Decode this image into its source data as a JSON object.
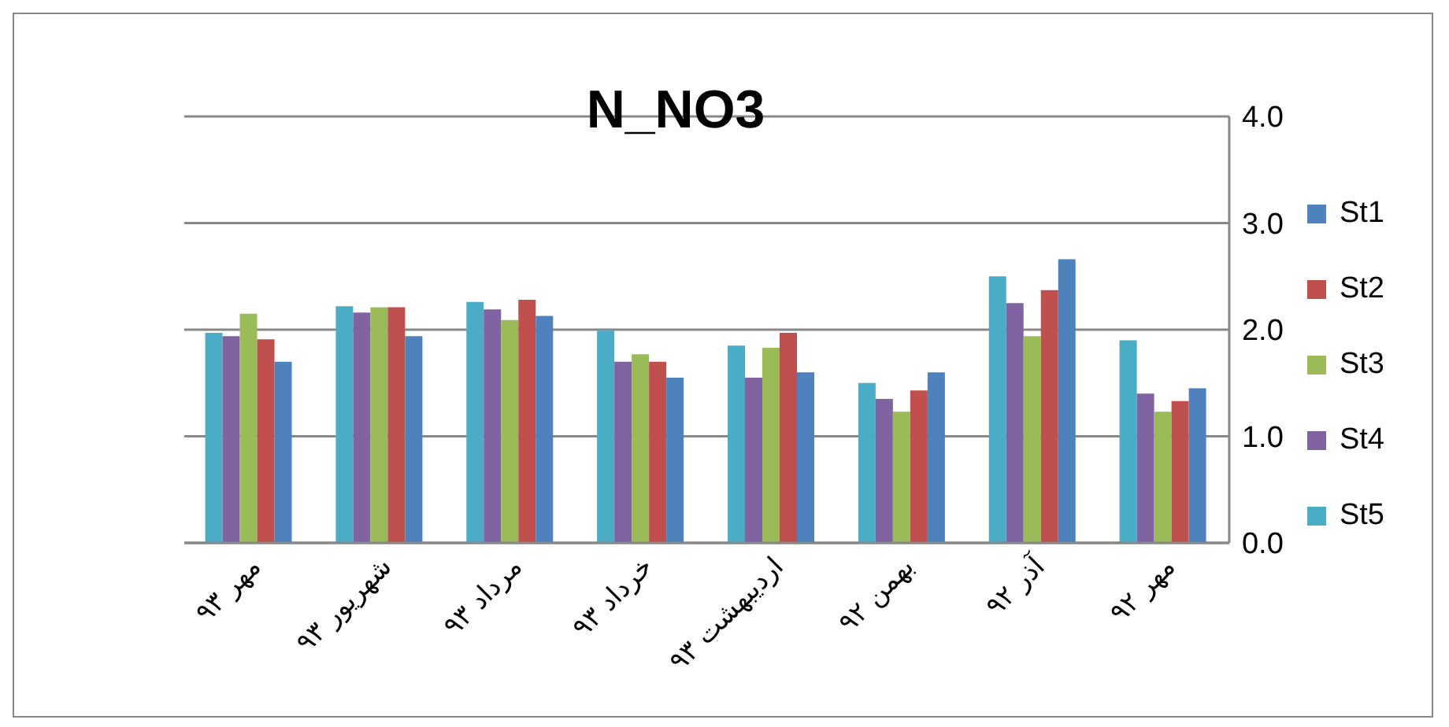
{
  "chart_data": {
    "type": "bar",
    "title": "N_NO3",
    "categories": [
      "مهر ۹۳",
      "شهریور ۹۳",
      "مرداد ۹۳",
      "خرداد ۹۳",
      "اردیبهشت ۹۳",
      "بهمن ۹۲",
      "آذر ۹۲",
      "مهر ۹۲"
    ],
    "series": [
      {
        "name": "St1",
        "color": "#4f81bd",
        "values": [
          1.7,
          1.94,
          2.13,
          1.55,
          1.6,
          1.6,
          2.66,
          1.45
        ]
      },
      {
        "name": "St2",
        "color": "#c0504d",
        "values": [
          1.91,
          2.21,
          2.28,
          1.7,
          1.97,
          1.43,
          2.37,
          1.33
        ]
      },
      {
        "name": "St3",
        "color": "#9bbb59",
        "values": [
          2.15,
          2.21,
          2.09,
          1.77,
          1.83,
          1.23,
          1.94,
          1.23
        ]
      },
      {
        "name": "St4",
        "color": "#8064a2",
        "values": [
          1.94,
          2.16,
          2.19,
          1.7,
          1.55,
          1.35,
          2.25,
          1.4
        ]
      },
      {
        "name": "St5",
        "color": "#4bacc6",
        "values": [
          1.97,
          2.22,
          2.26,
          1.99,
          1.85,
          1.5,
          2.5,
          1.9
        ]
      }
    ],
    "ylim": [
      0,
      4
    ],
    "yticks": [
      {
        "value": 0,
        "label": "0.0"
      },
      {
        "value": 1,
        "label": "1.0"
      },
      {
        "value": 2,
        "label": "2.0"
      },
      {
        "value": 3,
        "label": "3.0"
      },
      {
        "value": 4,
        "label": "4.0"
      }
    ],
    "grid": "y",
    "legend": "right"
  }
}
